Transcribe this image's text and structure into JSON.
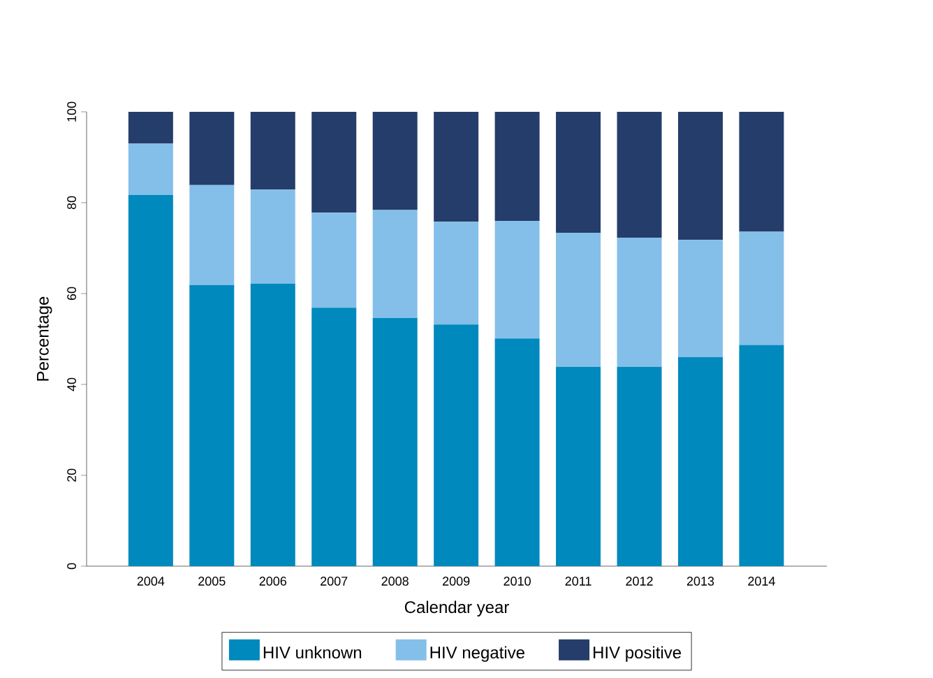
{
  "chart_data": {
    "type": "bar",
    "stacked": true,
    "xlabel": "Calendar year",
    "ylabel": "Percentage",
    "categories": [
      "2004",
      "2005",
      "2006",
      "2007",
      "2008",
      "2009",
      "2010",
      "2011",
      "2012",
      "2013",
      "2014"
    ],
    "series": [
      {
        "name": "HIV unknown",
        "color": "#0089bd",
        "values": [
          81.7,
          61.9,
          62.2,
          56.9,
          54.6,
          53.2,
          50.1,
          43.9,
          43.9,
          46.0,
          48.7
        ]
      },
      {
        "name": "HIV negative",
        "color": "#84bfe9",
        "values": [
          11.3,
          22.0,
          20.7,
          20.9,
          23.8,
          22.6,
          25.9,
          29.5,
          28.4,
          25.8,
          24.9
        ]
      },
      {
        "name": "HIV positive",
        "color": "#253d6b",
        "values": [
          7.0,
          16.1,
          17.1,
          22.2,
          21.6,
          24.2,
          24.0,
          26.6,
          27.7,
          28.2,
          26.4
        ]
      }
    ],
    "ylim": [
      0,
      100
    ],
    "yticks": [
      0,
      20,
      40,
      60,
      80,
      100
    ],
    "grid": false,
    "legend": "bottom"
  }
}
